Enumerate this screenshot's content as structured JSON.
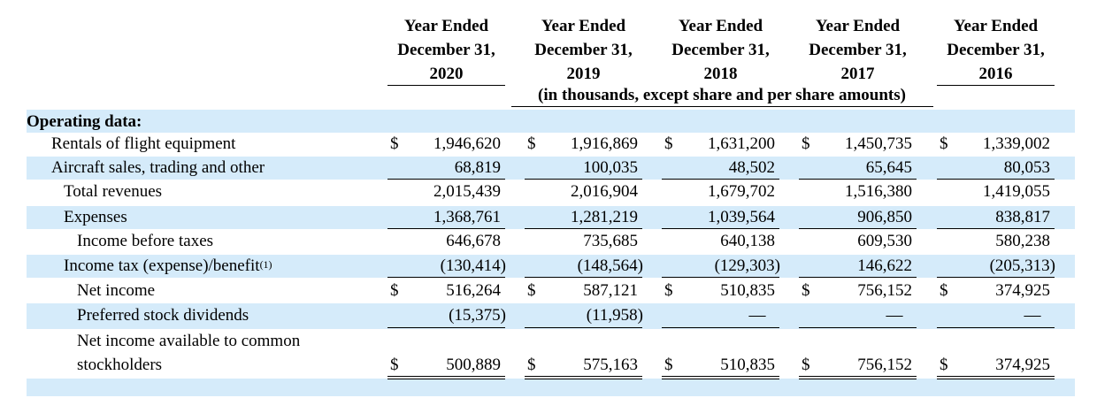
{
  "header": {
    "columns": [
      {
        "line1": "Year Ended",
        "line2": "December 31,",
        "line3": "2020"
      },
      {
        "line1": "Year Ended",
        "line2": "December 31,",
        "line3": "2019"
      },
      {
        "line1": "Year Ended",
        "line2": "December 31,",
        "line3": "2018"
      },
      {
        "line1": "Year Ended",
        "line2": "December 31,",
        "line3": "2017"
      },
      {
        "line1": "Year Ended",
        "line2": "December 31,",
        "line3": "2016"
      }
    ],
    "units_note": "(in thousands, except share and per share amounts)"
  },
  "section_title": "Operating data:",
  "currency_symbol": "$",
  "footnote_marker": "(1)",
  "band_color": "#d5ebfa",
  "rows": [
    {
      "label": "Rentals of flight equipment",
      "values": [
        "1,946,620",
        "1,916,869",
        "1,631,200",
        "1,450,735",
        "1,339,002"
      ],
      "dollar": true
    },
    {
      "label": "Aircraft sales, trading and other",
      "values": [
        "68,819",
        "100,035",
        "48,502",
        "65,645",
        "80,053"
      ],
      "dollar": false
    },
    {
      "label": "Total revenues",
      "values": [
        "2,015,439",
        "2,016,904",
        "1,679,702",
        "1,516,380",
        "1,419,055"
      ],
      "dollar": false
    },
    {
      "label": "Expenses",
      "values": [
        "1,368,761",
        "1,281,219",
        "1,039,564",
        "906,850",
        "838,817"
      ],
      "dollar": false
    },
    {
      "label": "Income before taxes",
      "values": [
        "646,678",
        "735,685",
        "640,138",
        "609,530",
        "580,238"
      ],
      "dollar": false
    },
    {
      "label": "Income tax (expense)/benefit",
      "values": [
        "(130,414)",
        "(148,564)",
        "(129,303)",
        "146,622",
        "(205,313)"
      ],
      "dollar": false
    },
    {
      "label": "Net income",
      "values": [
        "516,264",
        "587,121",
        "510,835",
        "756,152",
        "374,925"
      ],
      "dollar": true
    },
    {
      "label": "Preferred stock dividends",
      "values": [
        "(15,375)",
        "(11,958)",
        "—",
        "—",
        "—"
      ],
      "dollar": false
    },
    {
      "label_line1": "Net income available to common",
      "label_line2": "stockholders",
      "values": [
        "500,889",
        "575,163",
        "510,835",
        "756,152",
        "374,925"
      ],
      "dollar": true
    }
  ]
}
